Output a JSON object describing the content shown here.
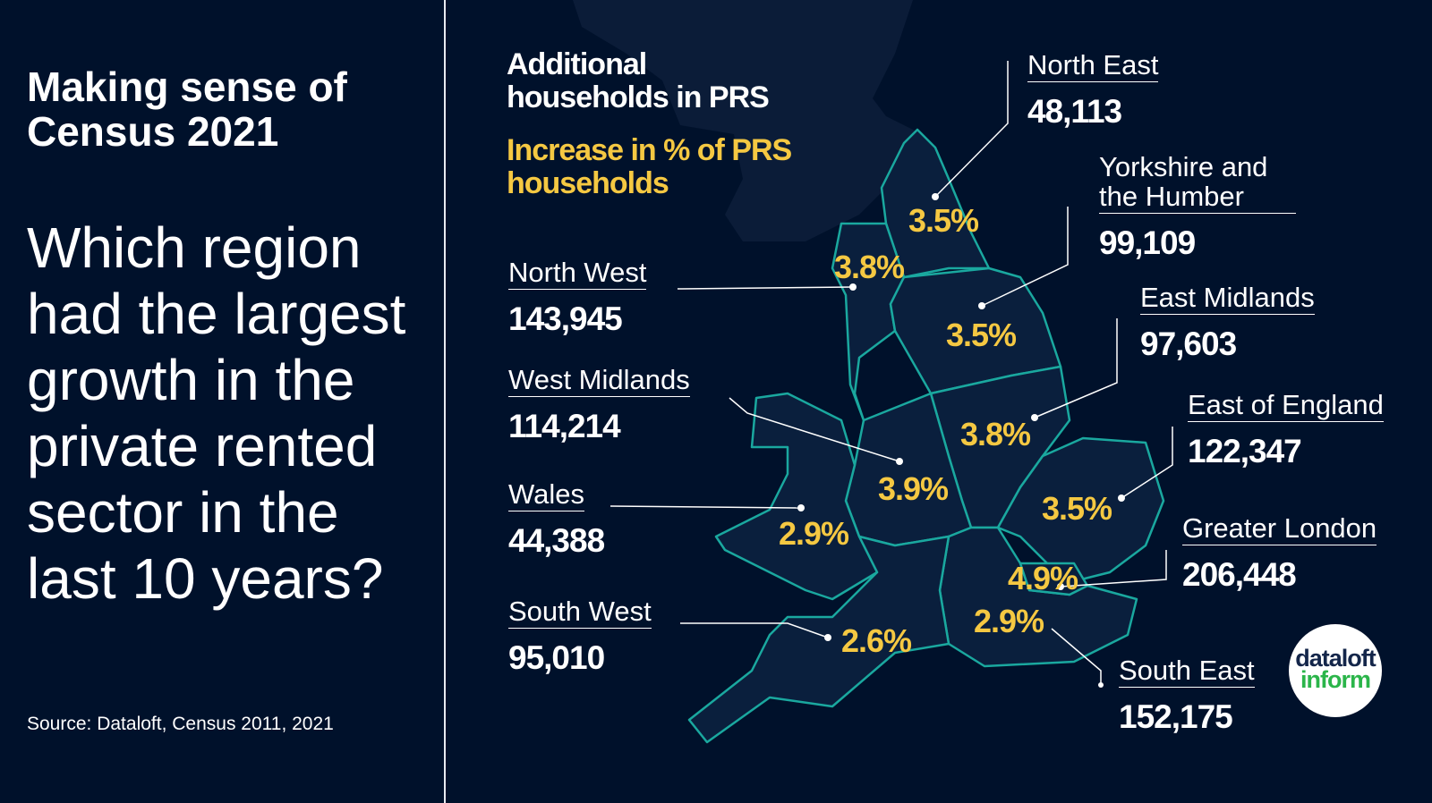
{
  "header": {
    "title": "Making sense of Census 2021",
    "question": "Which region had the largest growth in the private rented sector in the last 10 years?",
    "source": "Source: Dataloft, Census 2011, 2021"
  },
  "legend": {
    "primary": "Additional households in PRS",
    "secondary": "Increase in % of PRS households"
  },
  "colors": {
    "background": "#00112b",
    "map_fill": "#0a1f3d",
    "border": "#1aa89f",
    "accent": "#f5c842"
  },
  "regions": [
    {
      "name": "North East",
      "households": "48,113",
      "pct": "3.5%"
    },
    {
      "name": "North West",
      "households": "143,945",
      "pct": "3.8%"
    },
    {
      "name": "Yorkshire and the Humber",
      "households": "99,109",
      "pct": "3.5%"
    },
    {
      "name": "East Midlands",
      "households": "97,603",
      "pct": "3.8%"
    },
    {
      "name": "West Midlands",
      "households": "114,214",
      "pct": "3.9%"
    },
    {
      "name": "East of England",
      "households": "122,347",
      "pct": "3.5%"
    },
    {
      "name": "Wales",
      "households": "44,388",
      "pct": "2.9%"
    },
    {
      "name": "Greater London",
      "households": "206,448",
      "pct": "4.9%"
    },
    {
      "name": "South West",
      "households": "95,010",
      "pct": "2.6%"
    },
    {
      "name": "South East",
      "households": "152,175",
      "pct": "2.9%"
    }
  ],
  "logo": {
    "line1": "dataloft",
    "line2": "inform"
  }
}
